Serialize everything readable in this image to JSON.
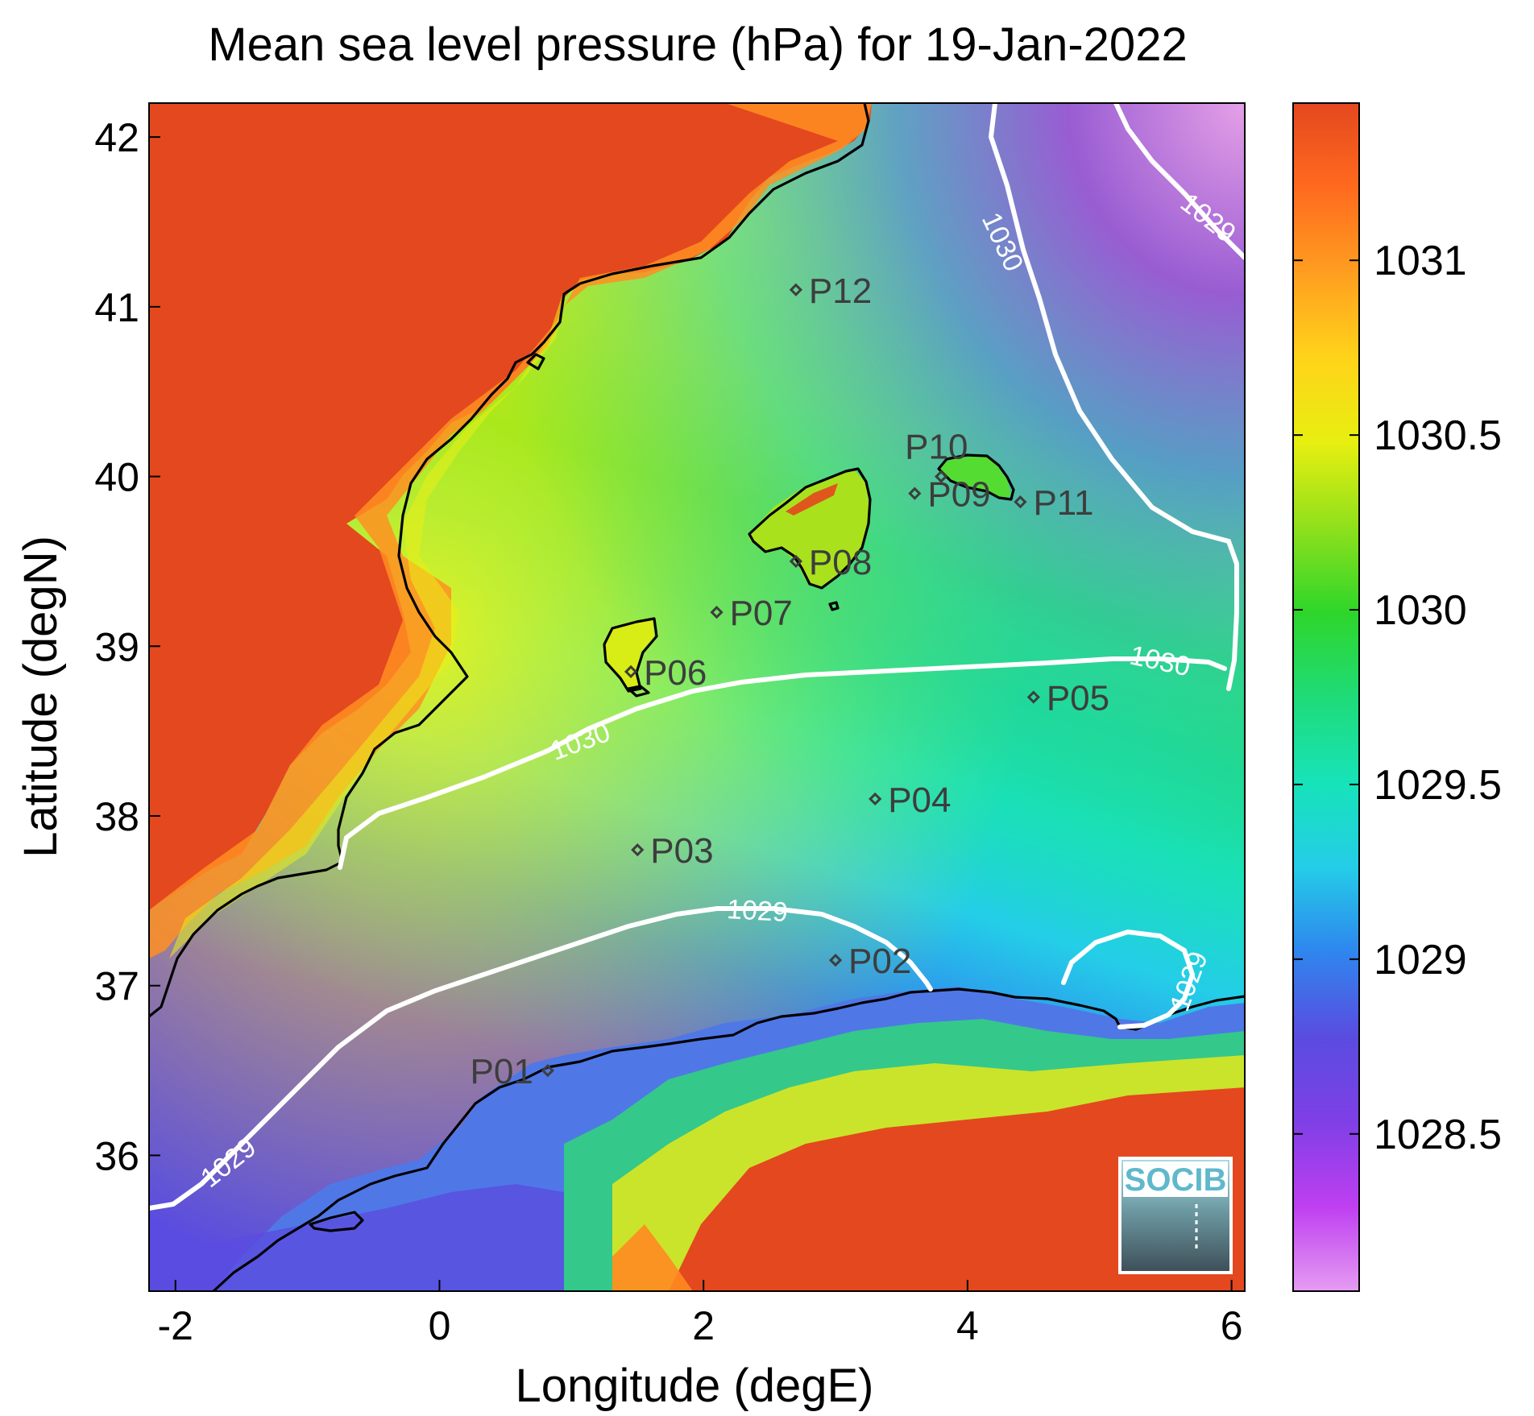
{
  "title": "Mean sea level pressure (hPa) for 19-Jan-2022",
  "xlabel": "Longitude (degE)",
  "ylabel": "Latitude (degN)",
  "x_ticks": [
    "-2",
    "0",
    "2",
    "4",
    "6"
  ],
  "y_ticks": [
    "36",
    "37",
    "38",
    "39",
    "40",
    "41",
    "42"
  ],
  "colorbar": {
    "ticks": [
      "1028.5",
      "1029",
      "1029.5",
      "1030",
      "1030.5",
      "1031"
    ],
    "range": [
      1028.05,
      1031.45
    ],
    "colors": [
      "#e59cf2",
      "#bf3ff1",
      "#7f3fe6",
      "#5a4ce0",
      "#2f86ee",
      "#24cde8",
      "#17e3b8",
      "#1fdb78",
      "#2ed62a",
      "#8fe01c",
      "#e7ef10",
      "#ffd31a",
      "#ff9e20",
      "#ff6a1e",
      "#e4481e"
    ]
  },
  "contour_labels": [
    "1030",
    "1029",
    "1030",
    "1030",
    "1029",
    "1029",
    "1029"
  ],
  "stations": [
    {
      "id": "P01",
      "lon": 0.82,
      "lat": 36.5
    },
    {
      "id": "P02",
      "lon": 3.0,
      "lat": 37.15
    },
    {
      "id": "P03",
      "lon": 1.5,
      "lat": 37.8
    },
    {
      "id": "P04",
      "lon": 3.3,
      "lat": 38.1
    },
    {
      "id": "P05",
      "lon": 4.5,
      "lat": 38.7
    },
    {
      "id": "P06",
      "lon": 1.45,
      "lat": 38.85
    },
    {
      "id": "P07",
      "lon": 2.1,
      "lat": 39.2
    },
    {
      "id": "P08",
      "lon": 2.7,
      "lat": 39.5
    },
    {
      "id": "P09",
      "lon": 3.6,
      "lat": 39.9
    },
    {
      "id": "P10",
      "lon": 3.8,
      "lat": 40.0
    },
    {
      "id": "P11",
      "lon": 4.4,
      "lat": 39.85
    },
    {
      "id": "P12",
      "lon": 2.7,
      "lat": 41.1
    }
  ],
  "logo_text": "SOCIB",
  "chart_data": {
    "type": "heatmap",
    "title": "Mean sea level pressure (hPa) for 19-Jan-2022",
    "xlabel": "Longitude (degE)",
    "ylabel": "Latitude (degN)",
    "xlim": [
      -2.2,
      6.1
    ],
    "ylim": [
      35.2,
      42.2
    ],
    "colorbar_label_values": [
      1028.5,
      1029,
      1029.5,
      1030,
      1030.5,
      1031
    ],
    "contour_levels": [
      1029,
      1030
    ],
    "colormap": "jet-like (violet to red)"
  }
}
